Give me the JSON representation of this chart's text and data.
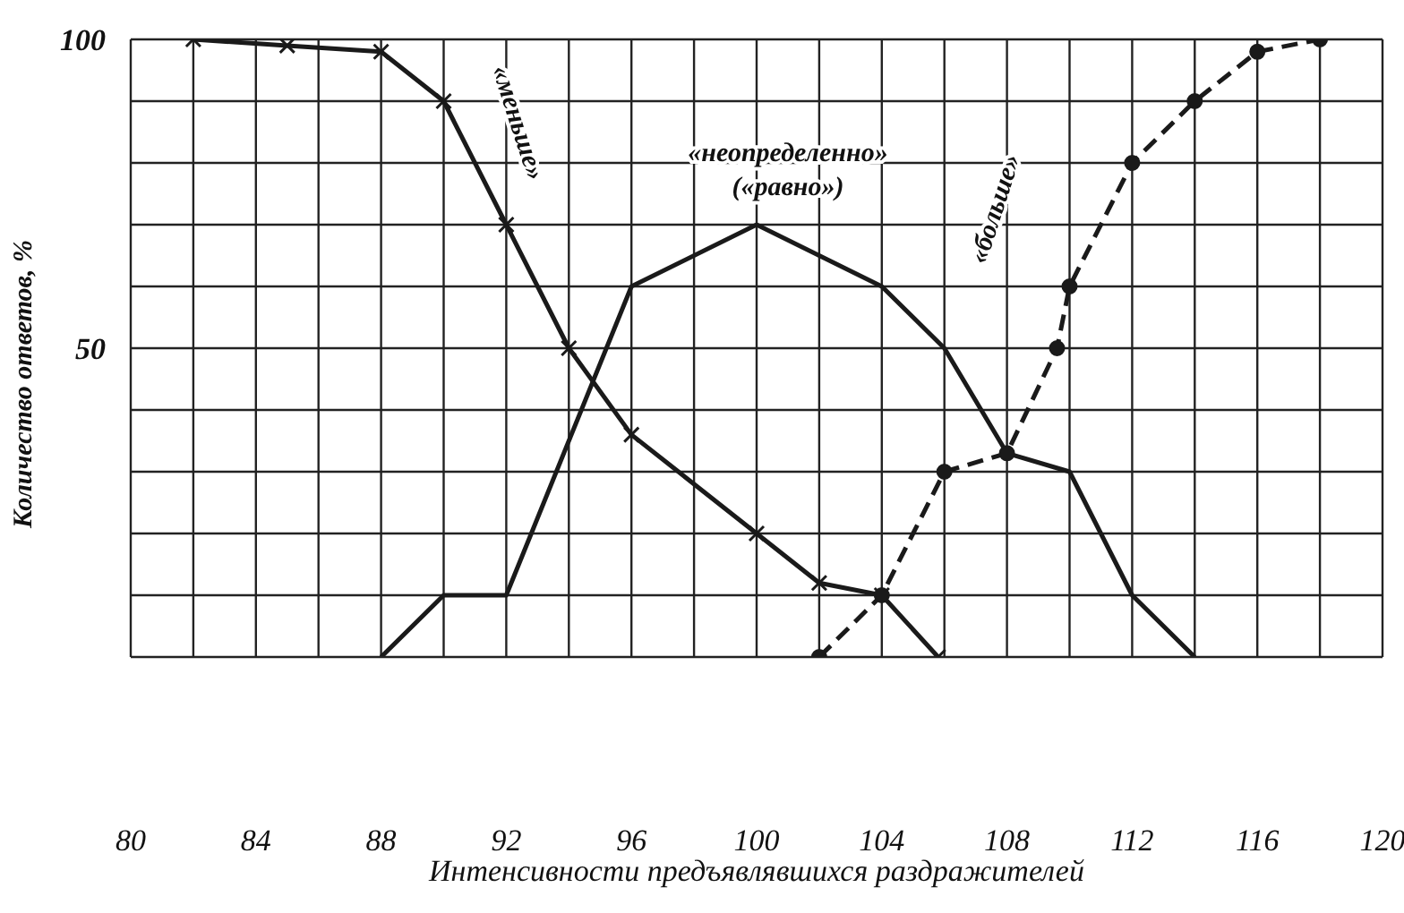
{
  "chart_data": {
    "type": "line",
    "xlabel": "Интенсивности предъявлявшихся раздражителей",
    "ylabel": "Количество ответов, %",
    "xlim": [
      80,
      120
    ],
    "xticks": [
      80,
      {
        "value": 82,
        "label": null
      },
      84,
      {
        "value": 86,
        "label": null
      },
      88,
      {
        "value": 90,
        "label": null
      },
      92,
      {
        "value": 94,
        "label": null
      },
      96,
      {
        "value": 98,
        "label": null
      },
      100,
      {
        "value": 102,
        "label": null
      },
      104,
      {
        "value": 106,
        "label": null
      },
      108,
      {
        "value": 110,
        "label": null
      },
      112,
      {
        "value": 114,
        "label": null
      },
      116,
      {
        "value": 118,
        "label": null
      },
      120
    ],
    "ylim": [
      0,
      100
    ],
    "yticks": [
      {
        "value": 0,
        "label": null
      },
      {
        "value": 10,
        "label": null
      },
      {
        "value": 20,
        "label": null
      },
      {
        "value": 30,
        "label": null
      },
      {
        "value": 40,
        "label": null
      },
      50,
      {
        "value": 60,
        "label": null
      },
      {
        "value": 70,
        "label": null
      },
      {
        "value": 80,
        "label": null
      },
      {
        "value": 90,
        "label": null
      },
      100
    ],
    "grid": true,
    "series": [
      {
        "name": "«меньше»",
        "color": "#1a1a1a",
        "marker": "cross",
        "line_style": "solid",
        "x": [
          82,
          85,
          88,
          90,
          92,
          94,
          96,
          100,
          102,
          104,
          105.8
        ],
        "values": [
          100,
          99,
          98,
          90,
          70,
          50,
          36,
          20,
          12,
          10,
          0
        ]
      },
      {
        "name": "«неопределенно» («равно»)",
        "color": "#1a1a1a",
        "marker": "none",
        "line_style": "solid",
        "x": [
          88,
          90,
          92,
          96,
          100,
          104,
          106,
          108,
          110,
          112,
          114
        ],
        "values": [
          0,
          10,
          10,
          60,
          70,
          60,
          50,
          33,
          30,
          10,
          0
        ]
      },
      {
        "name": "«больше»",
        "color": "#1a1a1a",
        "marker": "circle",
        "line_style": "dashed",
        "x": [
          102,
          104,
          106,
          108,
          109.6,
          110,
          112,
          114,
          116,
          118
        ],
        "values": [
          0,
          10,
          30,
          33,
          50,
          60,
          80,
          90,
          98,
          100
        ]
      }
    ]
  }
}
